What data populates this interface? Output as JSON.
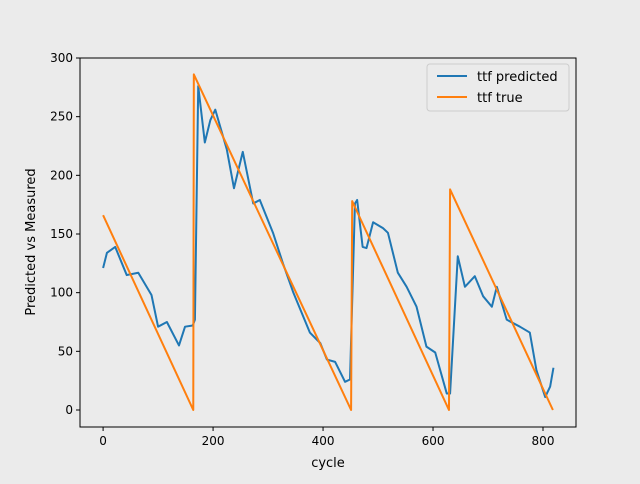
{
  "chart_data": {
    "type": "line",
    "title": "",
    "xlabel": "cycle",
    "ylabel": "Predicted vs Measured",
    "xlim": [
      -42,
      860
    ],
    "ylim": [
      -14.5,
      300
    ],
    "xticks": [
      0,
      200,
      400,
      600,
      800
    ],
    "yticks": [
      0,
      50,
      100,
      150,
      200,
      250,
      300
    ],
    "grid": false,
    "legend_position": "top-right",
    "series": [
      {
        "name": "ttf predicted",
        "color": "#1f77b4",
        "points": [
          [
            0,
            121
          ],
          [
            7,
            134
          ],
          [
            22,
            139
          ],
          [
            43,
            115
          ],
          [
            64,
            117
          ],
          [
            88,
            98
          ],
          [
            100,
            71
          ],
          [
            116,
            75
          ],
          [
            138,
            55
          ],
          [
            149,
            71
          ],
          [
            163,
            72
          ],
          [
            167,
            77
          ],
          [
            173,
            276
          ],
          [
            185,
            228
          ],
          [
            195,
            247
          ],
          [
            204,
            256
          ],
          [
            225,
            222
          ],
          [
            238,
            189
          ],
          [
            254,
            220
          ],
          [
            273,
            176
          ],
          [
            285,
            179
          ],
          [
            309,
            151
          ],
          [
            327,
            125
          ],
          [
            346,
            100
          ],
          [
            376,
            66
          ],
          [
            395,
            57
          ],
          [
            407,
            43
          ],
          [
            422,
            41
          ],
          [
            440,
            24
          ],
          [
            449,
            26
          ],
          [
            458,
            176
          ],
          [
            462,
            179
          ],
          [
            472,
            139
          ],
          [
            479,
            138
          ],
          [
            491,
            160
          ],
          [
            509,
            155
          ],
          [
            518,
            151
          ],
          [
            536,
            117
          ],
          [
            552,
            105
          ],
          [
            570,
            88
          ],
          [
            588,
            54
          ],
          [
            604,
            49
          ],
          [
            625,
            14
          ],
          [
            631,
            14
          ],
          [
            645,
            131
          ],
          [
            658,
            105
          ],
          [
            676,
            114
          ],
          [
            691,
            97
          ],
          [
            707,
            88
          ],
          [
            716,
            105
          ],
          [
            734,
            77
          ],
          [
            758,
            71
          ],
          [
            776,
            66
          ],
          [
            788,
            34
          ],
          [
            804,
            11
          ],
          [
            813,
            20
          ],
          [
            819,
            36
          ]
        ]
      },
      {
        "name": "ttf true",
        "color": "#ff7f0e",
        "points": [
          [
            0,
            166
          ],
          [
            164,
            0
          ],
          [
            165,
            286
          ],
          [
            451,
            0
          ],
          [
            453,
            178
          ],
          [
            629,
            0
          ],
          [
            631,
            188
          ],
          [
            818,
            0
          ]
        ]
      }
    ]
  }
}
